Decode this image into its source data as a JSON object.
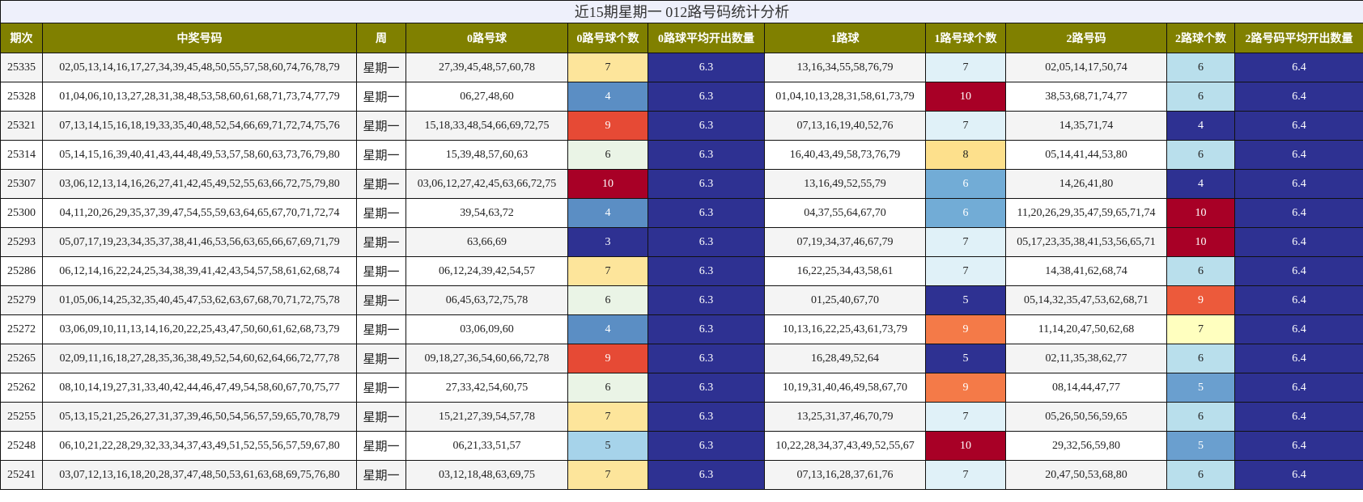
{
  "title": "近15期星期一 012路号码统计分析",
  "headers": [
    "期次",
    "中奖号码",
    "周",
    "0路号球",
    "0路号球个数",
    "0路球平均开出数量",
    "1路球",
    "1路号球个数",
    "2路号码",
    "2路球个数",
    "2路号码平均开出数量"
  ],
  "rows": [
    {
      "issue": "25335",
      "numbers": "02,05,13,14,16,17,27,34,39,45,48,50,55,57,58,60,74,76,78,79",
      "week": "星期一",
      "r0": "27,39,45,48,57,60,78",
      "c0": "7",
      "avg0": "6.3",
      "r1": "13,16,34,55,58,76,79",
      "c1": "7",
      "r2": "02,05,14,17,50,74",
      "c2": "6",
      "avg2": "6.4"
    },
    {
      "issue": "25328",
      "numbers": "01,04,06,10,13,27,28,31,38,48,53,58,60,61,68,71,73,74,77,79",
      "week": "星期一",
      "r0": "06,27,48,60",
      "c0": "4",
      "avg0": "6.3",
      "r1": "01,04,10,13,28,31,58,61,73,79",
      "c1": "10",
      "r2": "38,53,68,71,74,77",
      "c2": "6",
      "avg2": "6.4"
    },
    {
      "issue": "25321",
      "numbers": "07,13,14,15,16,18,19,33,35,40,48,52,54,66,69,71,72,74,75,76",
      "week": "星期一",
      "r0": "15,18,33,48,54,66,69,72,75",
      "c0": "9",
      "avg0": "6.3",
      "r1": "07,13,16,19,40,52,76",
      "c1": "7",
      "r2": "14,35,71,74",
      "c2": "4",
      "avg2": "6.4"
    },
    {
      "issue": "25314",
      "numbers": "05,14,15,16,39,40,41,43,44,48,49,53,57,58,60,63,73,76,79,80",
      "week": "星期一",
      "r0": "15,39,48,57,60,63",
      "c0": "6",
      "avg0": "6.3",
      "r1": "16,40,43,49,58,73,76,79",
      "c1": "8",
      "r2": "05,14,41,44,53,80",
      "c2": "6",
      "avg2": "6.4"
    },
    {
      "issue": "25307",
      "numbers": "03,06,12,13,14,16,26,27,41,42,45,49,52,55,63,66,72,75,79,80",
      "week": "星期一",
      "r0": "03,06,12,27,42,45,63,66,72,75",
      "c0": "10",
      "avg0": "6.3",
      "r1": "13,16,49,52,55,79",
      "c1": "6",
      "r2": "14,26,41,80",
      "c2": "4",
      "avg2": "6.4"
    },
    {
      "issue": "25300",
      "numbers": "04,11,20,26,29,35,37,39,47,54,55,59,63,64,65,67,70,71,72,74",
      "week": "星期一",
      "r0": "39,54,63,72",
      "c0": "4",
      "avg0": "6.3",
      "r1": "04,37,55,64,67,70",
      "c1": "6",
      "r2": "11,20,26,29,35,47,59,65,71,74",
      "c2": "10",
      "avg2": "6.4"
    },
    {
      "issue": "25293",
      "numbers": "05,07,17,19,23,34,35,37,38,41,46,53,56,63,65,66,67,69,71,79",
      "week": "星期一",
      "r0": "63,66,69",
      "c0": "3",
      "avg0": "6.3",
      "r1": "07,19,34,37,46,67,79",
      "c1": "7",
      "r2": "05,17,23,35,38,41,53,56,65,71",
      "c2": "10",
      "avg2": "6.4"
    },
    {
      "issue": "25286",
      "numbers": "06,12,14,16,22,24,25,34,38,39,41,42,43,54,57,58,61,62,68,74",
      "week": "星期一",
      "r0": "06,12,24,39,42,54,57",
      "c0": "7",
      "avg0": "6.3",
      "r1": "16,22,25,34,43,58,61",
      "c1": "7",
      "r2": "14,38,41,62,68,74",
      "c2": "6",
      "avg2": "6.4"
    },
    {
      "issue": "25279",
      "numbers": "01,05,06,14,25,32,35,40,45,47,53,62,63,67,68,70,71,72,75,78",
      "week": "星期一",
      "r0": "06,45,63,72,75,78",
      "c0": "6",
      "avg0": "6.3",
      "r1": "01,25,40,67,70",
      "c1": "5",
      "r2": "05,14,32,35,47,53,62,68,71",
      "c2": "9",
      "avg2": "6.4"
    },
    {
      "issue": "25272",
      "numbers": "03,06,09,10,11,13,14,16,20,22,25,43,47,50,60,61,62,68,73,79",
      "week": "星期一",
      "r0": "03,06,09,60",
      "c0": "4",
      "avg0": "6.3",
      "r1": "10,13,16,22,25,43,61,73,79",
      "c1": "9",
      "r2": "11,14,20,47,50,62,68",
      "c2": "7",
      "avg2": "6.4"
    },
    {
      "issue": "25265",
      "numbers": "02,09,11,16,18,27,28,35,36,38,49,52,54,60,62,64,66,72,77,78",
      "week": "星期一",
      "r0": "09,18,27,36,54,60,66,72,78",
      "c0": "9",
      "avg0": "6.3",
      "r1": "16,28,49,52,64",
      "c1": "5",
      "r2": "02,11,35,38,62,77",
      "c2": "6",
      "avg2": "6.4"
    },
    {
      "issue": "25262",
      "numbers": "08,10,14,19,27,31,33,40,42,44,46,47,49,54,58,60,67,70,75,77",
      "week": "星期一",
      "r0": "27,33,42,54,60,75",
      "c0": "6",
      "avg0": "6.3",
      "r1": "10,19,31,40,46,49,58,67,70",
      "c1": "9",
      "r2": "08,14,44,47,77",
      "c2": "5",
      "avg2": "6.4"
    },
    {
      "issue": "25255",
      "numbers": "05,13,15,21,25,26,27,31,37,39,46,50,54,56,57,59,65,70,78,79",
      "week": "星期一",
      "r0": "15,21,27,39,54,57,78",
      "c0": "7",
      "avg0": "6.3",
      "r1": "13,25,31,37,46,70,79",
      "c1": "7",
      "r2": "05,26,50,56,59,65",
      "c2": "6",
      "avg2": "6.4"
    },
    {
      "issue": "25248",
      "numbers": "06,10,21,22,28,29,32,33,34,37,43,49,51,52,55,56,57,59,67,80",
      "week": "星期一",
      "r0": "06,21,33,51,57",
      "c0": "5",
      "avg0": "6.3",
      "r1": "10,22,28,34,37,43,49,52,55,67",
      "c1": "10",
      "r2": "29,32,56,59,80",
      "c2": "5",
      "avg2": "6.4"
    },
    {
      "issue": "25241",
      "numbers": "03,07,12,13,16,18,20,28,37,47,48,50,53,61,63,68,69,75,76,80",
      "week": "星期一",
      "r0": "03,12,18,48,63,69,75",
      "c0": "7",
      "avg0": "6.3",
      "r1": "07,13,16,28,37,61,76",
      "c1": "7",
      "r2": "20,47,50,53,68,80",
      "c2": "6",
      "avg2": "6.4"
    }
  ],
  "count_colors": {
    "3": "#2e3192",
    "4": "#5b8ec4",
    "5": "#a6d3ea",
    "6": "#eaf4e6",
    "7": "#fde59b",
    "8": "#fdde8c",
    "9": "#e64a35",
    "10": "#a80026"
  },
  "count_colors_1": {
    "5": "#2e3192",
    "6": "#72acd6",
    "7": "#e0f1f8",
    "8": "#fde08c",
    "9": "#f47a48",
    "10": "#a80026"
  },
  "count_colors_2": {
    "4": "#2e3192",
    "5": "#6a9fcf",
    "6": "#b9dfec",
    "7": "#ffffbf",
    "9": "#ec5a3b",
    "10": "#a80026"
  },
  "avg_color": "#2e3192",
  "header_color": "#808000"
}
